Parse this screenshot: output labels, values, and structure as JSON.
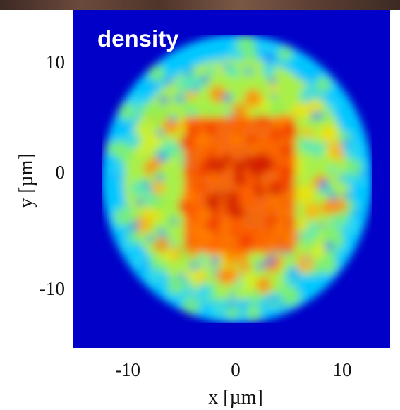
{
  "chart_data": {
    "type": "heatmap",
    "title": "density",
    "xlabel": "x [µm]",
    "ylabel": "y [µm]",
    "xlim": [
      -15,
      15
    ],
    "ylim": [
      -15,
      15
    ],
    "x_ticks": [
      -10,
      0,
      10
    ],
    "y_ticks": [
      10,
      0,
      -10
    ],
    "x_tick_labels": [
      "-10",
      "0",
      "10"
    ],
    "y_tick_labels": [
      "10",
      "0",
      "-10"
    ],
    "colormap": "jet",
    "colors": {
      "background": "#0000c8",
      "low": "#00c8ff",
      "mid": "#f0e000",
      "high": "#d21e00"
    },
    "cloud": {
      "shape": "disk",
      "center": [
        0.5,
        0
      ],
      "radius": 12.8,
      "dense_core": {
        "shape": "square",
        "x_range": [
          -4.5,
          6
        ],
        "y_range": [
          -6.5,
          5.5
        ]
      }
    },
    "grid": false,
    "legend": "none"
  }
}
